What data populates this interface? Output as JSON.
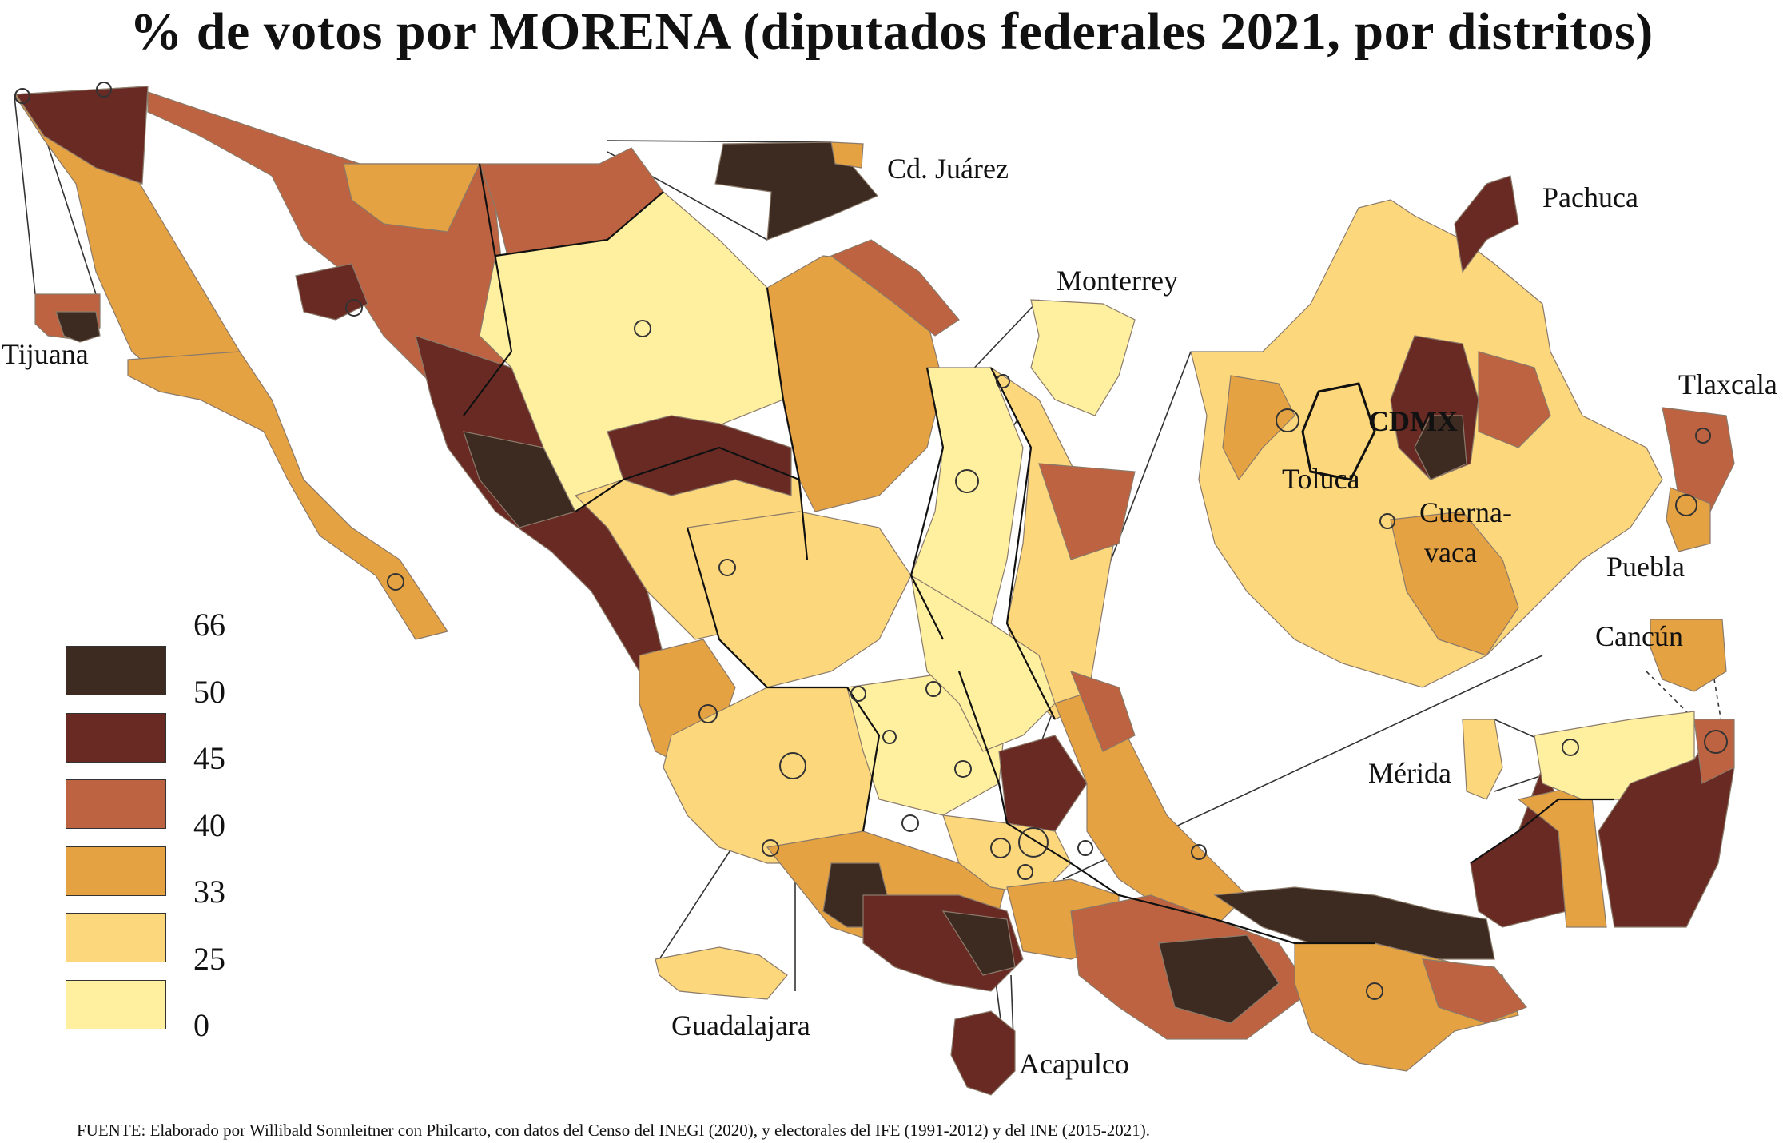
{
  "title": "% de votos por MORENA (diputados federales 2021, por distritos)",
  "colors": {
    "c0": "#fff0a0",
    "c25": "#fcd77c",
    "c33": "#e5a242",
    "c40": "#bd6341",
    "c45": "#6a2a24",
    "c50": "#3d2b22",
    "border": "#8a7a6a",
    "state_border": "#111111"
  },
  "legend": {
    "ticks": [
      "66",
      "50",
      "45",
      "40",
      "33",
      "25",
      "0"
    ],
    "classes": [
      {
        "range": "50-66",
        "color": "#3d2b22"
      },
      {
        "range": "45-50",
        "color": "#6a2a24"
      },
      {
        "range": "40-45",
        "color": "#bd6341"
      },
      {
        "range": "33-40",
        "color": "#e5a242"
      },
      {
        "range": "25-33",
        "color": "#fcd77c"
      },
      {
        "range": "0-25",
        "color": "#fff0a0"
      }
    ]
  },
  "labels": {
    "tijuana": "Tijuana",
    "cd_juarez": "Cd. Juárez",
    "monterrey": "Monterrey",
    "pachuca": "Pachuca",
    "tlaxcala": "Tlaxcala",
    "cdmx": "CDMX",
    "toluca": "Toluca",
    "cuernavaca_1": "Cuerna-",
    "cuernavaca_2": "vaca",
    "puebla": "Puebla",
    "cancun": "Cancún",
    "merida": "Mérida",
    "guadalajara": "Guadalajara",
    "acapulco": "Acapulco"
  },
  "source": "FUENTE: Elaborado por Willibald Sonnleitner con Philcarto, con datos del Censo del INEGI (2020), y electorales del IFE (1991-2012) y del INE (2015-2021)."
}
